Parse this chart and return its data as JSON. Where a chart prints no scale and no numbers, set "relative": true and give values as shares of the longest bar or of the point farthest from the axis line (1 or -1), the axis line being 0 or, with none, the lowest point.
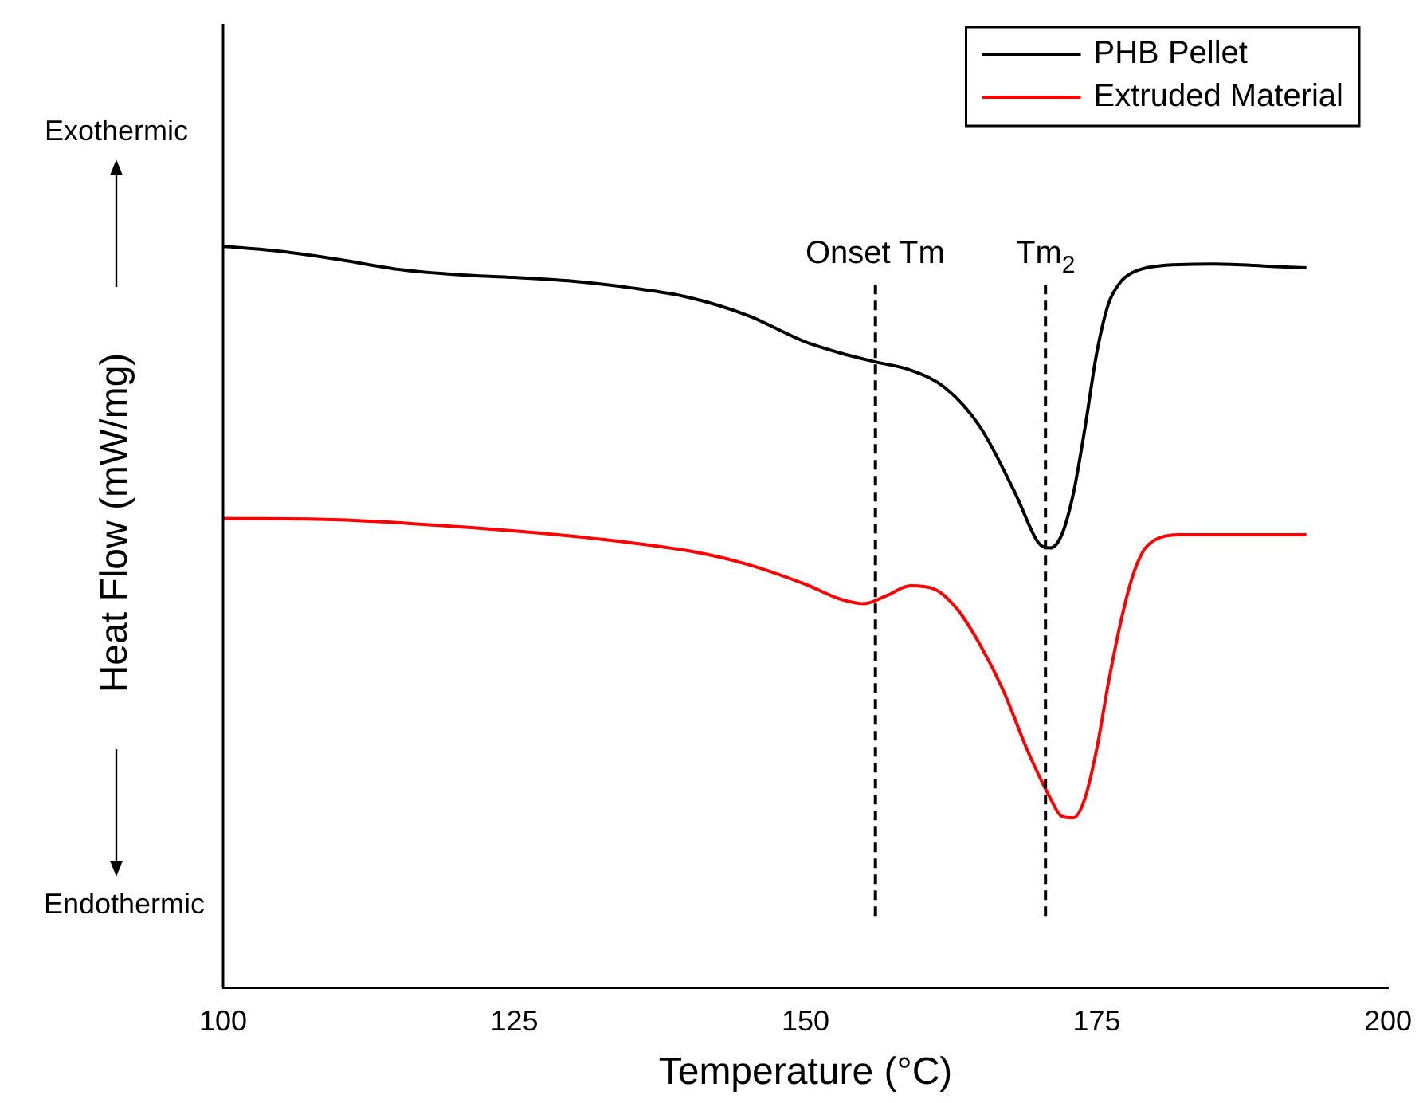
{
  "chart_data": {
    "type": "line",
    "xlabel": "Temperature (°C)",
    "ylabel": "Heat Flow (mW/mg)",
    "relative": true,
    "xlim": [
      100,
      200
    ],
    "xticks": [
      100,
      125,
      150,
      175,
      200
    ],
    "grid": false,
    "legend": "top right",
    "marker": "none",
    "line_style": "solid",
    "annotations": [
      "Exothermic",
      "Endothermic"
    ],
    "ref_lines": [
      {
        "axis": "x",
        "value": 156,
        "label": "Onset Tm",
        "line_style": "dashed",
        "color": "#000000"
      },
      {
        "axis": "x",
        "value": 170.6,
        "label": "Tm$_{2}$",
        "line_style": "dashed",
        "color": "#000000"
      }
    ],
    "series": [
      {
        "name": "PHB Pellet",
        "color": "#000000",
        "x": [
          100,
          105,
          110,
          115,
          120,
          125,
          130,
          135,
          140,
          145,
          150,
          153,
          156,
          159,
          162,
          165,
          168,
          170,
          171,
          172,
          173,
          174,
          175,
          176,
          177,
          178,
          180,
          185,
          190,
          193
        ],
        "values": [
          1.0,
          0.993,
          0.982,
          0.969,
          0.962,
          0.958,
          0.953,
          0.944,
          0.931,
          0.907,
          0.871,
          0.856,
          0.844,
          0.833,
          0.809,
          0.756,
          0.667,
          0.6,
          0.593,
          0.611,
          0.667,
          0.756,
          0.856,
          0.922,
          0.951,
          0.964,
          0.973,
          0.976,
          0.973,
          0.971
        ]
      },
      {
        "name": "Extruded Material",
        "color": "#ff0000",
        "x": [
          100,
          110,
          120,
          130,
          140,
          145,
          150,
          153,
          155,
          157,
          159,
          161,
          163,
          165,
          167,
          169,
          171,
          172,
          173,
          174,
          175,
          176,
          177,
          178,
          179,
          180,
          182,
          185,
          193
        ],
        "values": [
          0.633,
          0.631,
          0.622,
          0.609,
          0.589,
          0.571,
          0.544,
          0.524,
          0.518,
          0.529,
          0.542,
          0.538,
          0.511,
          0.462,
          0.4,
          0.322,
          0.256,
          0.231,
          0.229,
          0.256,
          0.322,
          0.411,
          0.489,
          0.551,
          0.589,
          0.604,
          0.611,
          0.611,
          0.611
        ]
      }
    ]
  }
}
